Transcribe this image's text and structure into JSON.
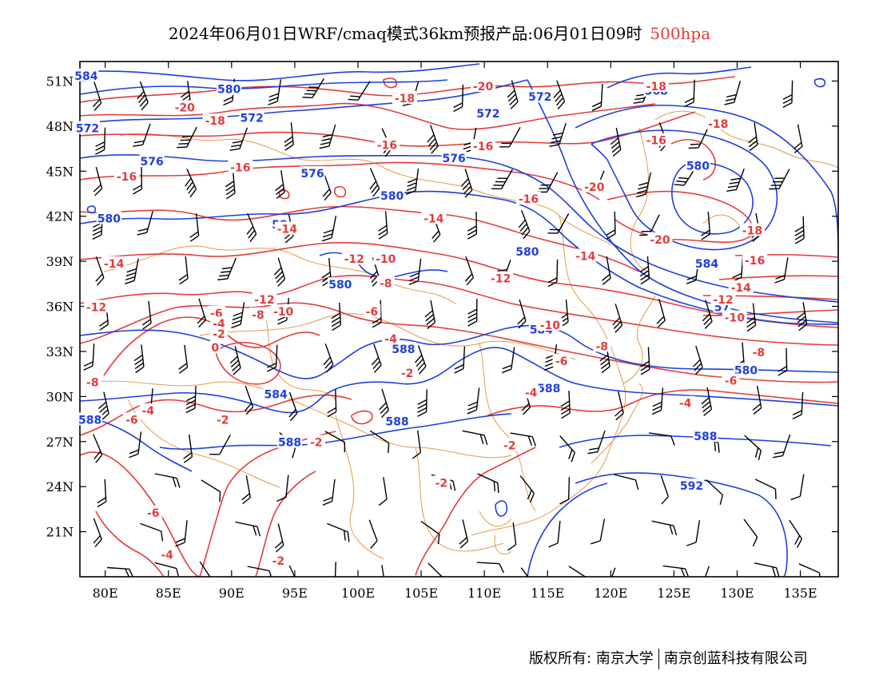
{
  "title": {
    "main": "2024年06月01日WRF/cmaq模式36km预报产品:06月01日09时",
    "level": "500hpa"
  },
  "colors": {
    "temperature": "#e23c3c",
    "height": "#1f3fdc",
    "border": "#e39a4a",
    "wind": "#000000",
    "title_level": "#e23c3c"
  },
  "axes": {
    "lon_labels": [
      "80E",
      "85E",
      "90E",
      "95E",
      "100E",
      "105E",
      "110E",
      "115E",
      "120E",
      "125E",
      "130E",
      "135E"
    ],
    "lat_labels": [
      "51N",
      "48N",
      "45N",
      "42N",
      "39N",
      "36N",
      "33N",
      "30N",
      "27N",
      "24N",
      "21N"
    ]
  },
  "height_labels": [
    {
      "text": "584",
      "lon": 78.5,
      "lat": 51.3
    },
    {
      "text": "580",
      "lon": 89.8,
      "lat": 50.4
    },
    {
      "text": "572",
      "lon": 91.6,
      "lat": 48.5
    },
    {
      "text": "572",
      "lon": 110.3,
      "lat": 48.8
    },
    {
      "text": "572",
      "lon": 114.4,
      "lat": 49.9
    },
    {
      "text": "568",
      "lon": 123.6,
      "lat": 50.3
    },
    {
      "text": "572",
      "lon": 78.6,
      "lat": 47.8
    },
    {
      "text": "576",
      "lon": 83.7,
      "lat": 45.6
    },
    {
      "text": "576",
      "lon": 96.4,
      "lat": 44.8
    },
    {
      "text": "576",
      "lon": 107.6,
      "lat": 45.8
    },
    {
      "text": "580",
      "lon": 102.7,
      "lat": 43.3
    },
    {
      "text": "580",
      "lon": 126.9,
      "lat": 45.3
    },
    {
      "text": "580",
      "lon": 80.3,
      "lat": 41.8
    },
    {
      "text": "58",
      "lon": 93.8,
      "lat": 41.4
    },
    {
      "text": "580",
      "lon": 113.4,
      "lat": 39.6
    },
    {
      "text": "584",
      "lon": 127.6,
      "lat": 38.8
    },
    {
      "text": "580",
      "lon": 98.6,
      "lat": 37.4
    },
    {
      "text": "57",
      "lon": 128.8,
      "lat": 35.9
    },
    {
      "text": "584",
      "lon": 114.5,
      "lat": 34.4
    },
    {
      "text": "588",
      "lon": 103.6,
      "lat": 33.1
    },
    {
      "text": "580",
      "lon": 130.7,
      "lat": 31.7
    },
    {
      "text": "588",
      "lon": 115.1,
      "lat": 30.5
    },
    {
      "text": "584",
      "lon": 93.5,
      "lat": 30.1
    },
    {
      "text": "588",
      "lon": 78.8,
      "lat": 28.4
    },
    {
      "text": "588",
      "lon": 103.1,
      "lat": 28.3
    },
    {
      "text": "588",
      "lon": 94.6,
      "lat": 26.9
    },
    {
      "text": "588",
      "lon": 127.5,
      "lat": 27.3
    },
    {
      "text": "592",
      "lon": 126.4,
      "lat": 24.0
    }
  ],
  "temp_labels": [
    {
      "text": "-20",
      "lon": 109.9,
      "lat": 50.6
    },
    {
      "text": "-18",
      "lon": 103.7,
      "lat": 49.8
    },
    {
      "text": "-18",
      "lon": 123.6,
      "lat": 50.6
    },
    {
      "text": "-20",
      "lon": 86.3,
      "lat": 49.2
    },
    {
      "text": "-18",
      "lon": 88.7,
      "lat": 48.3
    },
    {
      "text": "-18",
      "lon": 128.5,
      "lat": 48.1
    },
    {
      "text": "-16",
      "lon": 102.3,
      "lat": 46.7
    },
    {
      "text": "-16",
      "lon": 109.9,
      "lat": 46.6
    },
    {
      "text": "-16",
      "lon": 123.6,
      "lat": 47.0
    },
    {
      "text": "-16",
      "lon": 90.7,
      "lat": 45.2
    },
    {
      "text": "-16",
      "lon": 81.7,
      "lat": 44.6
    },
    {
      "text": "-20",
      "lon": 118.7,
      "lat": 43.9
    },
    {
      "text": "-16",
      "lon": 113.5,
      "lat": 43.1
    },
    {
      "text": "-14",
      "lon": 106.0,
      "lat": 41.8
    },
    {
      "text": "-14",
      "lon": 94.4,
      "lat": 41.1
    },
    {
      "text": "-18",
      "lon": 131.2,
      "lat": 41.0
    },
    {
      "text": "-20",
      "lon": 123.9,
      "lat": 40.4
    },
    {
      "text": "-14",
      "lon": 118.0,
      "lat": 39.3
    },
    {
      "text": "-16",
      "lon": 131.4,
      "lat": 39.0
    },
    {
      "text": "-14",
      "lon": 80.7,
      "lat": 38.8
    },
    {
      "text": "-12",
      "lon": 99.7,
      "lat": 39.1
    },
    {
      "text": "-10",
      "lon": 102.2,
      "lat": 39.1
    },
    {
      "text": "-12",
      "lon": 111.3,
      "lat": 37.8
    },
    {
      "text": "-8",
      "lon": 102.2,
      "lat": 37.5
    },
    {
      "text": "-14",
      "lon": 130.3,
      "lat": 37.2
    },
    {
      "text": "-12",
      "lon": 92.6,
      "lat": 36.4
    },
    {
      "text": "-12",
      "lon": 128.9,
      "lat": 36.4
    },
    {
      "text": "-12",
      "lon": 79.3,
      "lat": 35.9
    },
    {
      "text": "-8",
      "lon": 92.1,
      "lat": 35.4
    },
    {
      "text": "-10",
      "lon": 94.1,
      "lat": 35.6
    },
    {
      "text": "-6",
      "lon": 88.8,
      "lat": 35.5
    },
    {
      "text": "-6",
      "lon": 101.1,
      "lat": 35.6
    },
    {
      "text": "-10",
      "lon": 129.8,
      "lat": 35.2
    },
    {
      "text": "-4",
      "lon": 89.0,
      "lat": 34.8
    },
    {
      "text": "-2",
      "lon": 89.0,
      "lat": 34.1
    },
    {
      "text": "-10",
      "lon": 115.2,
      "lat": 34.7
    },
    {
      "text": "-4",
      "lon": 102.6,
      "lat": 33.8
    },
    {
      "text": "-8",
      "lon": 119.3,
      "lat": 33.3
    },
    {
      "text": "0",
      "lon": 88.7,
      "lat": 33.2
    },
    {
      "text": "-8",
      "lon": 131.7,
      "lat": 32.9
    },
    {
      "text": "-6",
      "lon": 116.1,
      "lat": 32.3
    },
    {
      "text": "-2",
      "lon": 103.9,
      "lat": 31.5
    },
    {
      "text": "-8",
      "lon": 79.0,
      "lat": 30.9
    },
    {
      "text": "-6",
      "lon": 129.5,
      "lat": 31.0
    },
    {
      "text": "-4",
      "lon": 113.7,
      "lat": 30.2
    },
    {
      "text": "-4",
      "lon": 125.9,
      "lat": 29.5
    },
    {
      "text": "-4",
      "lon": 83.4,
      "lat": 29.0
    },
    {
      "text": "-6",
      "lon": 82.1,
      "lat": 28.4
    },
    {
      "text": "-2",
      "lon": 89.3,
      "lat": 28.4
    },
    {
      "text": "-2",
      "lon": 96.7,
      "lat": 26.9
    },
    {
      "text": "-2",
      "lon": 112.0,
      "lat": 26.7
    },
    {
      "text": "-2",
      "lon": 106.6,
      "lat": 24.2
    },
    {
      "text": "-6",
      "lon": 83.8,
      "lat": 22.2
    },
    {
      "text": "-4",
      "lon": 84.9,
      "lat": 19.4
    },
    {
      "text": "-2",
      "lon": 93.7,
      "lat": 19.0
    }
  ],
  "footer": {
    "copyright": "版权所有: 南京大学",
    "company": "南京创蓝科技有限公司"
  }
}
